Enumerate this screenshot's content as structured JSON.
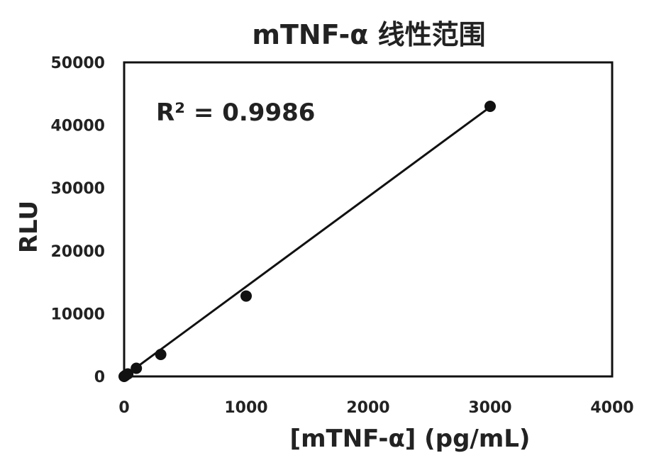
{
  "chart_data": {
    "type": "scatter",
    "title": "mTNF-α 线性范围",
    "xlabel": "[mTNF-α] (pg/mL)",
    "ylabel": "RLU",
    "xlim": [
      0,
      4000
    ],
    "ylim": [
      0,
      50000
    ],
    "x_ticks": [
      "0",
      "1000",
      "2000",
      "3000",
      "4000"
    ],
    "y_ticks": [
      "0",
      "10000",
      "20000",
      "30000",
      "40000",
      "50000"
    ],
    "grid": false,
    "series": [
      {
        "points": [
          {
            "x": 0,
            "y": 0
          },
          {
            "x": 10,
            "y": 150
          },
          {
            "x": 30,
            "y": 400
          },
          {
            "x": 100,
            "y": 1300
          },
          {
            "x": 300,
            "y": 3500
          },
          {
            "x": 1000,
            "y": 12800
          },
          {
            "x": 3000,
            "y": 43000
          }
        ]
      }
    ],
    "trendline": {
      "type": "linear",
      "from_x": 0,
      "to_x": 3000,
      "y_at_from": -300,
      "y_at_to": 42900
    },
    "annotations": [
      {
        "text": "R² = 0.9986"
      }
    ],
    "marker_color": "#111111",
    "line_color": "#111111"
  }
}
